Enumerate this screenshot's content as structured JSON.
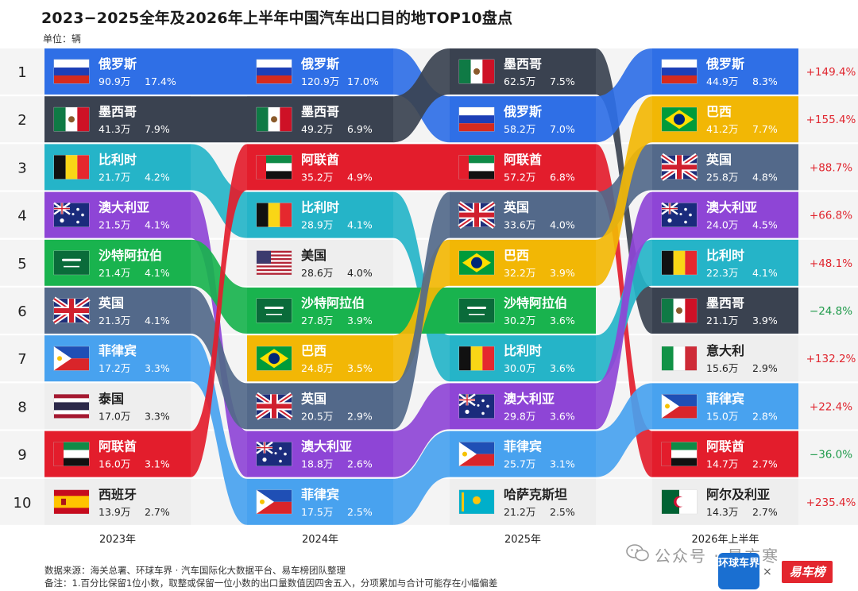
{
  "title": "2023−2025全年及2026年上半年中国汽车出口目的地TOP10盘点",
  "unit": "单位：辆",
  "footer": {
    "source": "数据来源：海关总署、环球车界 · 汽车国际化大数据平台、易车榜团队整理",
    "note": "备注：1.百分比保留1位小数，取整或保留一位小数的出口量数值因四舍五入，分项累加与合计可能存在小幅偏差"
  },
  "watermark": "公众号 · 易方寒",
  "logos": {
    "left": "环球车界",
    "x": "×",
    "right": "易车榜"
  },
  "chart_data": {
    "type": "table",
    "ranks": [
      "1",
      "2",
      "3",
      "4",
      "5",
      "6",
      "7",
      "8",
      "9",
      "10"
    ],
    "columns": [
      {
        "label": "2023年",
        "entries": [
          {
            "country": "俄罗斯",
            "value": "90.9万",
            "share": "17.4%"
          },
          {
            "country": "墨西哥",
            "value": "41.3万",
            "share": "7.9%"
          },
          {
            "country": "比利时",
            "value": "21.7万",
            "share": "4.2%"
          },
          {
            "country": "澳大利亚",
            "value": "21.5万",
            "share": "4.1%"
          },
          {
            "country": "沙特阿拉伯",
            "value": "21.4万",
            "share": "4.1%"
          },
          {
            "country": "英国",
            "value": "21.3万",
            "share": "4.1%"
          },
          {
            "country": "菲律宾",
            "value": "17.2万",
            "share": "3.3%"
          },
          {
            "country": "泰国",
            "value": "17.0万",
            "share": "3.3%"
          },
          {
            "country": "阿联酋",
            "value": "16.0万",
            "share": "3.1%"
          },
          {
            "country": "西班牙",
            "value": "13.9万",
            "share": "2.7%"
          }
        ]
      },
      {
        "label": "2024年",
        "entries": [
          {
            "country": "俄罗斯",
            "value": "120.9万",
            "share": "17.0%"
          },
          {
            "country": "墨西哥",
            "value": "49.2万",
            "share": "6.9%"
          },
          {
            "country": "阿联酋",
            "value": "35.2万",
            "share": "4.9%"
          },
          {
            "country": "比利时",
            "value": "28.9万",
            "share": "4.1%"
          },
          {
            "country": "美国",
            "value": "28.6万",
            "share": "4.0%"
          },
          {
            "country": "沙特阿拉伯",
            "value": "27.8万",
            "share": "3.9%"
          },
          {
            "country": "巴西",
            "value": "24.8万",
            "share": "3.5%"
          },
          {
            "country": "英国",
            "value": "20.5万",
            "share": "2.9%"
          },
          {
            "country": "澳大利亚",
            "value": "18.8万",
            "share": "2.6%"
          },
          {
            "country": "菲律宾",
            "value": "17.5万",
            "share": "2.5%"
          }
        ]
      },
      {
        "label": "2025年",
        "entries": [
          {
            "country": "墨西哥",
            "value": "62.5万",
            "share": "7.5%"
          },
          {
            "country": "俄罗斯",
            "value": "58.2万",
            "share": "7.0%"
          },
          {
            "country": "阿联酋",
            "value": "57.2万",
            "share": "6.8%"
          },
          {
            "country": "英国",
            "value": "33.6万",
            "share": "4.0%"
          },
          {
            "country": "巴西",
            "value": "32.2万",
            "share": "3.9%"
          },
          {
            "country": "沙特阿拉伯",
            "value": "30.2万",
            "share": "3.6%"
          },
          {
            "country": "比利时",
            "value": "30.0万",
            "share": "3.6%"
          },
          {
            "country": "澳大利亚",
            "value": "29.8万",
            "share": "3.6%"
          },
          {
            "country": "菲律宾",
            "value": "25.7万",
            "share": "3.1%"
          },
          {
            "country": "哈萨克斯坦",
            "value": "21.2万",
            "share": "2.5%"
          }
        ]
      },
      {
        "label": "2026年上半年",
        "entries": [
          {
            "country": "俄罗斯",
            "value": "44.9万",
            "share": "8.3%"
          },
          {
            "country": "巴西",
            "value": "41.2万",
            "share": "7.7%"
          },
          {
            "country": "英国",
            "value": "25.8万",
            "share": "4.8%"
          },
          {
            "country": "澳大利亚",
            "value": "24.0万",
            "share": "4.5%"
          },
          {
            "country": "比利时",
            "value": "22.3万",
            "share": "4.1%"
          },
          {
            "country": "墨西哥",
            "value": "21.1万",
            "share": "3.9%"
          },
          {
            "country": "意大利",
            "value": "15.6万",
            "share": "2.9%"
          },
          {
            "country": "菲律宾",
            "value": "15.0万",
            "share": "2.8%"
          },
          {
            "country": "阿联酋",
            "value": "14.7万",
            "share": "2.7%"
          },
          {
            "country": "阿尔及利亚",
            "value": "14.3万",
            "share": "2.7%"
          }
        ]
      }
    ],
    "growth": [
      "+149.4%",
      "+155.4%",
      "+88.7%",
      "+66.8%",
      "+48.1%",
      "−24.8%",
      "+132.2%",
      "+22.4%",
      "−36.0%",
      "+235.4%"
    ],
    "growth_colors": {
      "positive": "#e0262f",
      "negative": "#1e9a4a"
    },
    "country_colors": {
      "俄罗斯": "#2f6fe6",
      "墨西哥": "#3a4250",
      "比利时": "#25b4c8",
      "澳大利亚": "#8e45d6",
      "沙特阿拉伯": "#19b34e",
      "英国": "#53698a",
      "菲律宾": "#48a2ef",
      "泰国": "#eeeeee",
      "阿联酋": "#e31d2c",
      "西班牙": "#eeeeee",
      "美国": "#eeeeee",
      "巴西": "#f2b705",
      "哈萨克斯坦": "#eeeeee",
      "意大利": "#eeeeee",
      "阿尔及利亚": "#eeeeee"
    }
  }
}
